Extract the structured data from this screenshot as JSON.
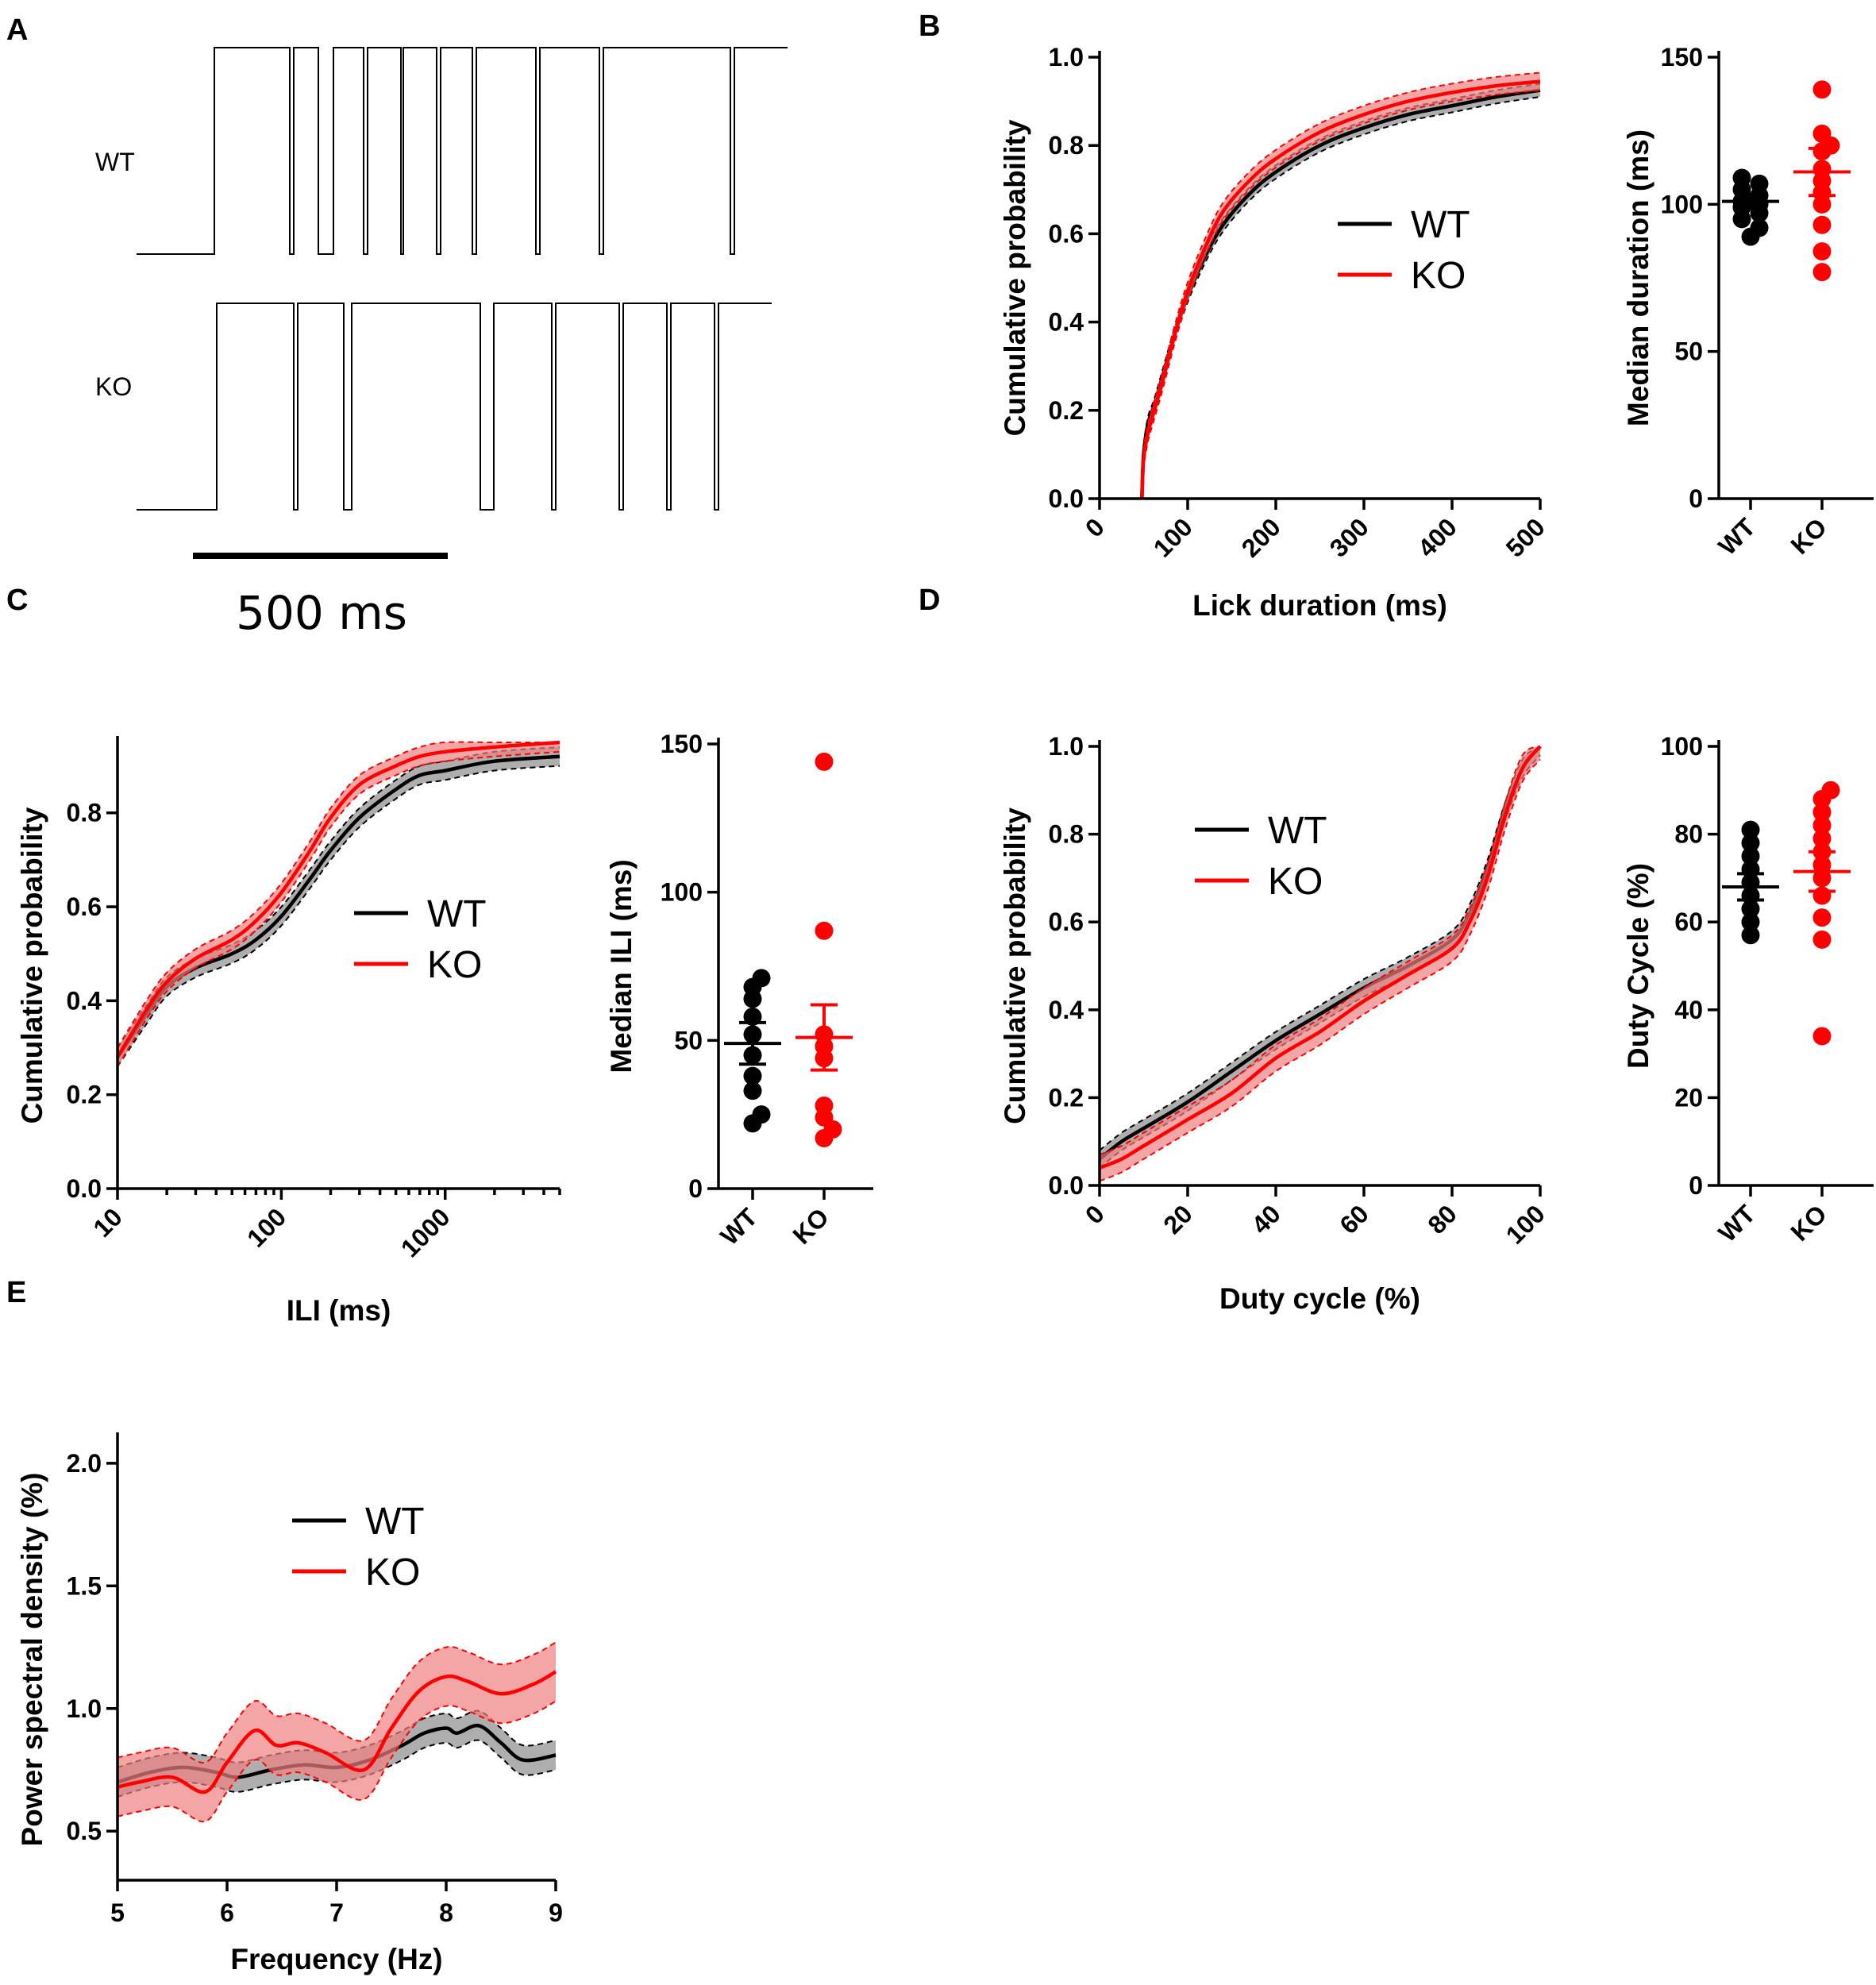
{
  "colors": {
    "wt": "#000000",
    "ko": "#ff0000",
    "wt_band": "#8c8c8c",
    "ko_band": "#f08080"
  },
  "panel_a": {
    "letter": "A",
    "traces": [
      {
        "name": "WT",
        "label": "WT"
      },
      {
        "name": "KO",
        "label": "KO"
      }
    ],
    "scale_bar": {
      "value_ms": 500,
      "label": "500 ms"
    }
  },
  "panels": [
    {
      "id": "B-left",
      "letter": "B",
      "type": "line",
      "x_scale": "linear",
      "xlim": [
        0,
        500
      ],
      "ylim": [
        0,
        1.0
      ],
      "xticks": [
        0,
        100,
        200,
        300,
        400,
        500
      ],
      "xtick_labels": [
        "0",
        "100",
        "200",
        "300",
        "400",
        "500"
      ],
      "yticks": [
        0,
        0.2,
        0.4,
        0.6,
        0.8,
        1.0
      ],
      "ytick_labels": [
        "0.0",
        "0.2",
        "0.4",
        "0.6",
        "0.8",
        "1.0"
      ],
      "xlabel": "Lick duration (ms)",
      "ylabel": "Cumulative probability",
      "legend": [
        {
          "label": "WT",
          "series": "WT"
        },
        {
          "label": "KO",
          "series": "KO"
        }
      ],
      "series": [
        {
          "name": "WT",
          "x": [
            48,
            50,
            55,
            62,
            72,
            85,
            100,
            120,
            140,
            170,
            200,
            250,
            300,
            350,
            400,
            450,
            500
          ],
          "y": [
            0.0,
            0.1,
            0.17,
            0.21,
            0.28,
            0.37,
            0.46,
            0.55,
            0.62,
            0.69,
            0.74,
            0.8,
            0.84,
            0.87,
            0.89,
            0.91,
            0.925
          ],
          "band": 0.015
        },
        {
          "name": "KO",
          "x": [
            48,
            50,
            55,
            62,
            72,
            85,
            100,
            120,
            140,
            170,
            200,
            250,
            300,
            350,
            400,
            450,
            500
          ],
          "y": [
            0.0,
            0.09,
            0.15,
            0.2,
            0.27,
            0.37,
            0.47,
            0.57,
            0.65,
            0.72,
            0.77,
            0.83,
            0.87,
            0.9,
            0.92,
            0.935,
            0.945
          ],
          "band": 0.02
        }
      ]
    },
    {
      "id": "B-right",
      "letter": "",
      "type": "scatter",
      "ylim": [
        0,
        150
      ],
      "yticks": [
        0,
        50,
        100,
        150
      ],
      "ytick_labels": [
        "0",
        "50",
        "100",
        "150"
      ],
      "categories": [
        "WT",
        "KO"
      ],
      "ylabel": "Median duration (ms)",
      "groups": [
        {
          "name": "WT",
          "points": [
            89,
            92,
            95,
            97,
            99,
            100,
            101,
            103,
            105,
            107,
            109
          ],
          "mean": 101,
          "sem": 2.3
        },
        {
          "name": "KO",
          "points": [
            77,
            84,
            93,
            100,
            104,
            108,
            112,
            118,
            120,
            124,
            139
          ],
          "mean": 111,
          "sem": 8
        }
      ]
    },
    {
      "id": "C-left",
      "letter": "C",
      "type": "line",
      "x_scale": "log",
      "xlim": [
        10,
        5000
      ],
      "ylim": [
        0,
        0.95
      ],
      "xticks": [
        10,
        100,
        1000
      ],
      "xtick_labels": [
        "10",
        "100",
        "1000"
      ],
      "yticks": [
        0,
        0.2,
        0.4,
        0.6,
        0.8
      ],
      "ytick_labels": [
        "0.0",
        "0.2",
        "0.4",
        "0.6",
        "0.8"
      ],
      "xlabel": "ILI (ms)",
      "ylabel": "Cumulative probability",
      "legend": [
        {
          "label": "WT",
          "series": "WT"
        },
        {
          "label": "KO",
          "series": "KO"
        }
      ],
      "series": [
        {
          "name": "WT",
          "x": [
            10,
            15,
            20,
            30,
            50,
            70,
            100,
            150,
            200,
            300,
            500,
            700,
            1000,
            2000,
            5000
          ],
          "y": [
            0.28,
            0.37,
            0.43,
            0.47,
            0.5,
            0.53,
            0.58,
            0.66,
            0.72,
            0.79,
            0.85,
            0.88,
            0.89,
            0.91,
            0.92
          ],
          "band": 0.02
        },
        {
          "name": "KO",
          "x": [
            10,
            15,
            20,
            30,
            50,
            70,
            100,
            150,
            200,
            300,
            500,
            700,
            1000,
            2000,
            5000
          ],
          "y": [
            0.28,
            0.38,
            0.44,
            0.49,
            0.53,
            0.57,
            0.63,
            0.72,
            0.79,
            0.86,
            0.9,
            0.92,
            0.93,
            0.94,
            0.95
          ],
          "band": 0.02
        }
      ]
    },
    {
      "id": "C-right",
      "letter": "",
      "type": "scatter",
      "ylim": [
        0,
        150
      ],
      "yticks": [
        0,
        50,
        100,
        150
      ],
      "ytick_labels": [
        "0",
        "50",
        "100",
        "150"
      ],
      "categories": [
        "WT",
        "KO"
      ],
      "ylabel": "Median ILI (ms)",
      "groups": [
        {
          "name": "WT",
          "points": [
            22,
            25,
            33,
            38,
            45,
            52,
            58,
            64,
            68,
            71
          ],
          "mean": 49,
          "sem": 7
        },
        {
          "name": "KO",
          "points": [
            17,
            20,
            24,
            28,
            44,
            48,
            52,
            87,
            144
          ],
          "mean": 51,
          "sem": 11
        }
      ]
    },
    {
      "id": "D-left",
      "letter": "D",
      "type": "line",
      "x_scale": "linear",
      "xlim": [
        0,
        100
      ],
      "ylim": [
        0,
        1.0
      ],
      "xticks": [
        0,
        20,
        40,
        60,
        80,
        100
      ],
      "xtick_labels": [
        "0",
        "20",
        "40",
        "60",
        "80",
        "100"
      ],
      "yticks": [
        0,
        0.2,
        0.4,
        0.6,
        0.8,
        1.0
      ],
      "ytick_labels": [
        "0.0",
        "0.2",
        "0.4",
        "0.6",
        "0.8",
        "1.0"
      ],
      "xlabel": "Duty cycle (%)",
      "ylabel": "Cumulative probability",
      "legend": [
        {
          "label": "WT",
          "series": "WT"
        },
        {
          "label": "KO",
          "series": "KO"
        }
      ],
      "series": [
        {
          "name": "WT",
          "x": [
            0,
            5,
            10,
            20,
            30,
            40,
            50,
            60,
            70,
            80,
            84,
            88,
            92,
            96,
            100
          ],
          "y": [
            0.06,
            0.1,
            0.13,
            0.19,
            0.26,
            0.33,
            0.39,
            0.45,
            0.5,
            0.56,
            0.62,
            0.72,
            0.85,
            0.95,
            1.0
          ],
          "band": 0.02
        },
        {
          "name": "KO",
          "x": [
            0,
            5,
            10,
            20,
            30,
            40,
            50,
            60,
            70,
            80,
            84,
            88,
            92,
            96,
            100
          ],
          "y": [
            0.04,
            0.06,
            0.09,
            0.15,
            0.21,
            0.29,
            0.35,
            0.42,
            0.48,
            0.54,
            0.6,
            0.7,
            0.84,
            0.95,
            1.0
          ],
          "band": 0.03
        }
      ]
    },
    {
      "id": "D-right",
      "letter": "",
      "type": "scatter",
      "ylim": [
        0,
        100
      ],
      "yticks": [
        0,
        20,
        40,
        60,
        80,
        100
      ],
      "ytick_labels": [
        "0",
        "20",
        "40",
        "60",
        "80",
        "100"
      ],
      "categories": [
        "WT",
        "KO"
      ],
      "ylabel": "Duty Cycle (%)",
      "groups": [
        {
          "name": "WT",
          "points": [
            57,
            60,
            63,
            66,
            69,
            72,
            75,
            78,
            81
          ],
          "mean": 68,
          "sem": 3
        },
        {
          "name": "KO",
          "points": [
            34,
            56,
            61,
            66,
            70,
            73,
            76,
            79,
            82,
            85,
            88,
            90
          ],
          "mean": 71.5,
          "sem": 4.5
        }
      ]
    },
    {
      "id": "E",
      "letter": "E",
      "type": "line",
      "x_scale": "linear",
      "xlim": [
        5,
        9
      ],
      "ylim": [
        0.3,
        2.1
      ],
      "xticks": [
        5,
        6,
        7,
        8,
        9
      ],
      "xtick_labels": [
        "5",
        "6",
        "7",
        "8",
        "9"
      ],
      "yticks": [
        0.5,
        1.0,
        1.5,
        2.0
      ],
      "ytick_labels": [
        "0.5",
        "1.0",
        "1.5",
        "2.0"
      ],
      "xlabel": "Frequency (Hz)",
      "ylabel": "Power spectral density (%)",
      "legend": [
        {
          "label": "WT",
          "series": "WT"
        },
        {
          "label": "KO",
          "series": "KO"
        }
      ],
      "series": [
        {
          "name": "WT",
          "x": [
            5.0,
            5.3,
            5.6,
            5.9,
            6.1,
            6.4,
            6.7,
            7.0,
            7.3,
            7.6,
            7.8,
            8.0,
            8.1,
            8.3,
            8.5,
            8.7,
            9.0
          ],
          "y": [
            0.7,
            0.74,
            0.76,
            0.74,
            0.72,
            0.75,
            0.77,
            0.76,
            0.79,
            0.85,
            0.9,
            0.92,
            0.9,
            0.93,
            0.86,
            0.79,
            0.81
          ],
          "band": 0.06
        },
        {
          "name": "KO",
          "x": [
            5.0,
            5.2,
            5.5,
            5.8,
            6.0,
            6.25,
            6.45,
            6.65,
            6.9,
            7.25,
            7.5,
            7.75,
            8.0,
            8.2,
            8.5,
            8.8,
            9.0
          ],
          "y": [
            0.68,
            0.7,
            0.72,
            0.66,
            0.78,
            0.91,
            0.85,
            0.86,
            0.82,
            0.75,
            0.92,
            1.07,
            1.13,
            1.11,
            1.06,
            1.1,
            1.15
          ],
          "band": 0.12
        }
      ]
    }
  ]
}
